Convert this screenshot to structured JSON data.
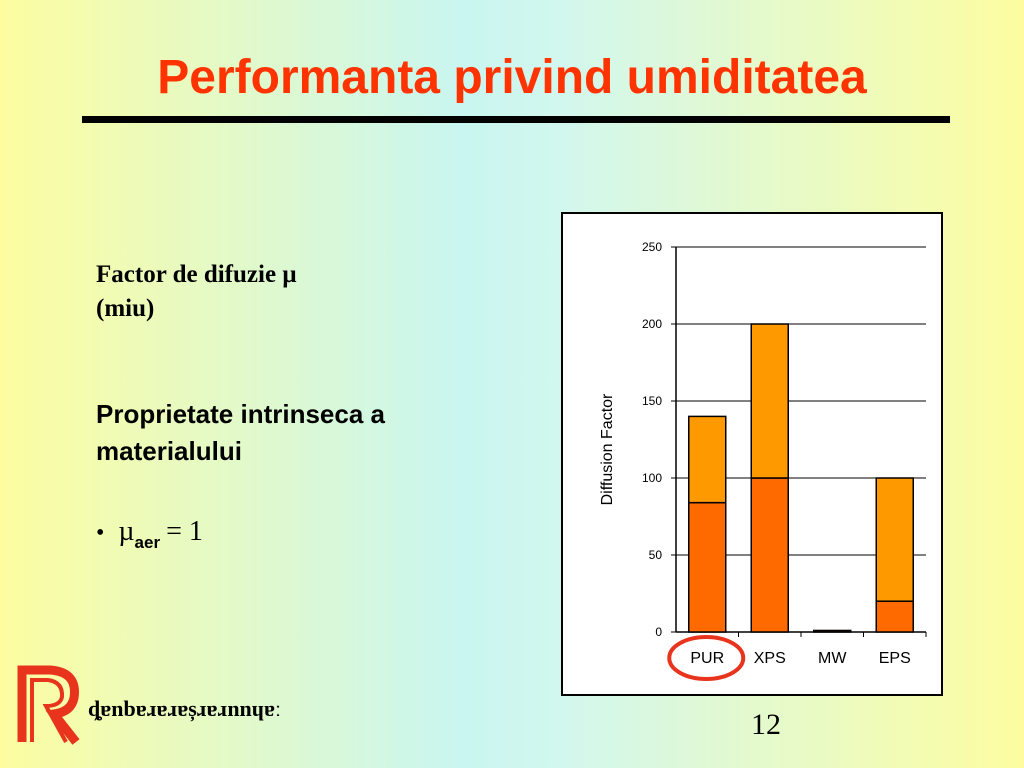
{
  "slide": {
    "title": "Performanta privind umiditatea",
    "factor_line1": "Factor de difuzie µ",
    "factor_line2": "(miu)",
    "property_line1": "Proprietate intrinseca a",
    "property_line2": "materialului",
    "bullet_symbol": "•",
    "mu_symbol": "µ",
    "mu_subscript": "aer",
    "mu_value": "= 1",
    "page_number": "12",
    "logo_text": "ȡɐnbɐɹɐɹɐșɹɐɹnnɥɐː"
  },
  "chart_data": {
    "type": "bar",
    "stacked": true,
    "categories": [
      "PUR",
      "XPS",
      "MW",
      "EPS"
    ],
    "series": [
      {
        "values": [
          84,
          100,
          1,
          20
        ],
        "color": "#ff6a00"
      },
      {
        "values": [
          56,
          100,
          0,
          80
        ],
        "color": "#ff9900"
      }
    ],
    "ylabel": "Diffusion Factor",
    "ylim": [
      0,
      250
    ],
    "yticks": [
      "0",
      "50",
      "100",
      "150",
      "200",
      "250"
    ],
    "grid": true,
    "highlight_category": "PUR",
    "highlight_color": "#e8341c"
  }
}
